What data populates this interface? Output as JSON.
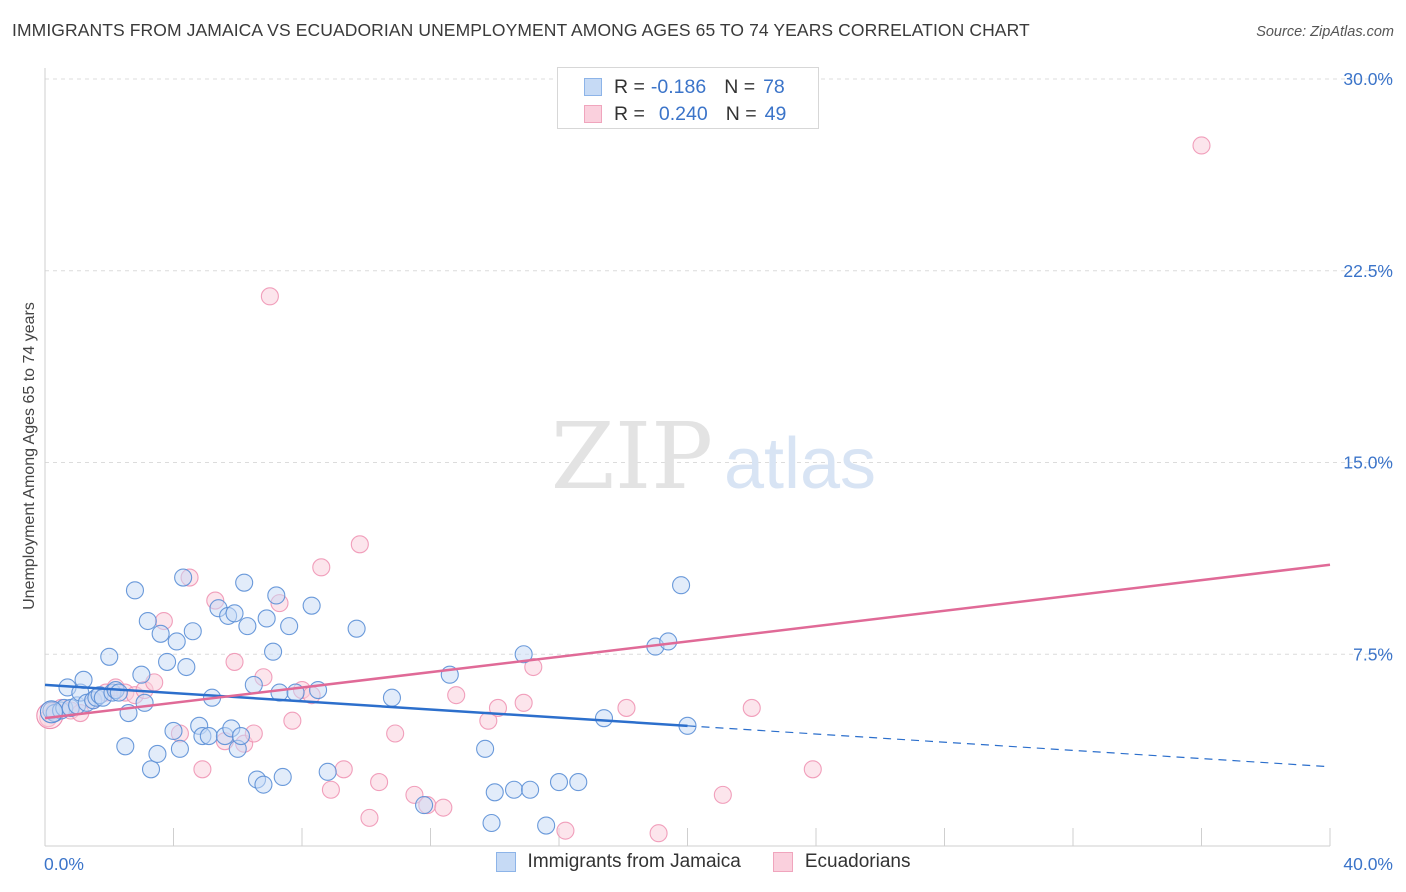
{
  "header": {
    "title": "IMMIGRANTS FROM JAMAICA VS ECUADORIAN UNEMPLOYMENT AMONG AGES 65 TO 74 YEARS CORRELATION CHART",
    "source": "Source: ZipAtlas.com"
  },
  "watermark": {
    "zip": "ZIP",
    "atlas": "atlas"
  },
  "legend": {
    "items": [
      {
        "r_label": "R =",
        "r_value": "-0.186",
        "n_label": "N =",
        "n_value": "78",
        "color": "#8db4e8",
        "fill": "#c6daf5"
      },
      {
        "r_label": "R =",
        "r_value": "0.240",
        "n_label": "N =",
        "n_value": "49",
        "color": "#f0a5bd",
        "fill": "#fad0dd"
      }
    ]
  },
  "chart_data": {
    "type": "scatter",
    "title": "IMMIGRANTS FROM JAMAICA VS ECUADORIAN UNEMPLOYMENT AMONG AGES 65 TO 74 YEARS CORRELATION CHART",
    "xlabel": "",
    "ylabel": "Unemployment Among Ages 65 to 74 years",
    "xlim": [
      0,
      40
    ],
    "ylim": [
      0,
      30
    ],
    "x_tick_labels": [
      "0.0%",
      "40.0%"
    ],
    "y_ticks": [
      7.5,
      15.0,
      22.5,
      30.0
    ],
    "y_tick_labels": [
      "7.5%",
      "15.0%",
      "22.5%",
      "30.0%"
    ],
    "grid": true,
    "legend_position": "top-center",
    "series": [
      {
        "name": "Immigrants from Jamaica",
        "color": "#5b8fd6",
        "line_color": "#2c6fcc",
        "trend": {
          "x": [
            0,
            20
          ],
          "y": [
            6.3,
            4.7
          ],
          "dashed_x": [
            20,
            40
          ],
          "dashed_y": [
            4.7,
            3.1
          ]
        },
        "points": [
          [
            0.2,
            5.3
          ],
          [
            0.3,
            5.2
          ],
          [
            0.5,
            5.3
          ],
          [
            0.6,
            5.4
          ],
          [
            0.7,
            6.2
          ],
          [
            0.8,
            5.4
          ],
          [
            1.0,
            5.5
          ],
          [
            1.1,
            6.0
          ],
          [
            1.2,
            6.5
          ],
          [
            1.3,
            5.6
          ],
          [
            1.5,
            5.7
          ],
          [
            1.6,
            5.8
          ],
          [
            1.7,
            5.9
          ],
          [
            1.8,
            5.8
          ],
          [
            2.0,
            7.4
          ],
          [
            2.1,
            6.0
          ],
          [
            2.2,
            6.1
          ],
          [
            2.3,
            6.0
          ],
          [
            2.5,
            3.9
          ],
          [
            2.6,
            5.2
          ],
          [
            2.8,
            10.0
          ],
          [
            3.0,
            6.7
          ],
          [
            3.1,
            5.6
          ],
          [
            3.2,
            8.8
          ],
          [
            3.3,
            3.0
          ],
          [
            3.5,
            3.6
          ],
          [
            3.6,
            8.3
          ],
          [
            3.8,
            7.2
          ],
          [
            4.0,
            4.5
          ],
          [
            4.1,
            8.0
          ],
          [
            4.2,
            3.8
          ],
          [
            4.3,
            10.5
          ],
          [
            4.4,
            7.0
          ],
          [
            4.6,
            8.4
          ],
          [
            4.8,
            4.7
          ],
          [
            4.9,
            4.3
          ],
          [
            5.1,
            4.3
          ],
          [
            5.2,
            5.8
          ],
          [
            5.4,
            9.3
          ],
          [
            5.6,
            4.3
          ],
          [
            5.7,
            9.0
          ],
          [
            5.8,
            4.6
          ],
          [
            5.9,
            9.1
          ],
          [
            6.0,
            3.8
          ],
          [
            6.1,
            4.3
          ],
          [
            6.2,
            10.3
          ],
          [
            6.3,
            8.6
          ],
          [
            6.5,
            6.3
          ],
          [
            6.6,
            2.6
          ],
          [
            6.8,
            2.4
          ],
          [
            6.9,
            8.9
          ],
          [
            7.1,
            7.6
          ],
          [
            7.2,
            9.8
          ],
          [
            7.3,
            6.0
          ],
          [
            7.4,
            2.7
          ],
          [
            7.6,
            8.6
          ],
          [
            7.8,
            6.0
          ],
          [
            8.3,
            9.4
          ],
          [
            8.5,
            6.1
          ],
          [
            8.8,
            2.9
          ],
          [
            9.7,
            8.5
          ],
          [
            10.8,
            5.8
          ],
          [
            11.8,
            1.6
          ],
          [
            12.6,
            6.7
          ],
          [
            13.7,
            3.8
          ],
          [
            13.9,
            0.9
          ],
          [
            14.0,
            2.1
          ],
          [
            14.6,
            2.2
          ],
          [
            14.9,
            7.5
          ],
          [
            15.1,
            2.2
          ],
          [
            15.6,
            0.8
          ],
          [
            16.0,
            2.5
          ],
          [
            16.6,
            2.5
          ],
          [
            17.4,
            5.0
          ],
          [
            19.0,
            7.8
          ],
          [
            19.4,
            8.0
          ],
          [
            19.8,
            10.2
          ],
          [
            20.0,
            4.7
          ]
        ]
      },
      {
        "name": "Ecuadorians",
        "color": "#ee8fb0",
        "line_color": "#e06a97",
        "trend": {
          "x": [
            0,
            40
          ],
          "y": [
            5.0,
            11.0
          ]
        },
        "points": [
          [
            0.1,
            5.0
          ],
          [
            0.3,
            5.3
          ],
          [
            0.5,
            5.4
          ],
          [
            0.8,
            5.3
          ],
          [
            1.1,
            5.2
          ],
          [
            1.5,
            5.7
          ],
          [
            1.9,
            6.0
          ],
          [
            2.2,
            6.2
          ],
          [
            2.5,
            6.0
          ],
          [
            2.8,
            5.9
          ],
          [
            3.1,
            6.1
          ],
          [
            3.4,
            6.4
          ],
          [
            3.7,
            8.8
          ],
          [
            4.2,
            4.4
          ],
          [
            4.5,
            10.5
          ],
          [
            4.9,
            3.0
          ],
          [
            5.3,
            9.6
          ],
          [
            5.6,
            4.1
          ],
          [
            5.9,
            7.2
          ],
          [
            6.2,
            4.0
          ],
          [
            6.5,
            4.4
          ],
          [
            6.8,
            6.6
          ],
          [
            7.0,
            21.5
          ],
          [
            7.3,
            9.5
          ],
          [
            7.7,
            4.9
          ],
          [
            8.0,
            6.1
          ],
          [
            8.3,
            5.9
          ],
          [
            8.6,
            10.9
          ],
          [
            8.9,
            2.2
          ],
          [
            9.3,
            3.0
          ],
          [
            9.8,
            11.8
          ],
          [
            10.1,
            1.1
          ],
          [
            10.4,
            2.5
          ],
          [
            10.9,
            4.4
          ],
          [
            11.5,
            2.0
          ],
          [
            11.9,
            1.6
          ],
          [
            12.4,
            1.5
          ],
          [
            12.8,
            5.9
          ],
          [
            13.8,
            4.9
          ],
          [
            14.1,
            5.4
          ],
          [
            14.9,
            5.6
          ],
          [
            15.2,
            7.0
          ],
          [
            16.2,
            0.6
          ],
          [
            18.1,
            5.4
          ],
          [
            19.1,
            0.5
          ],
          [
            21.1,
            2.0
          ],
          [
            22.0,
            5.4
          ],
          [
            23.9,
            3.0
          ],
          [
            36.0,
            27.4
          ]
        ]
      }
    ]
  }
}
